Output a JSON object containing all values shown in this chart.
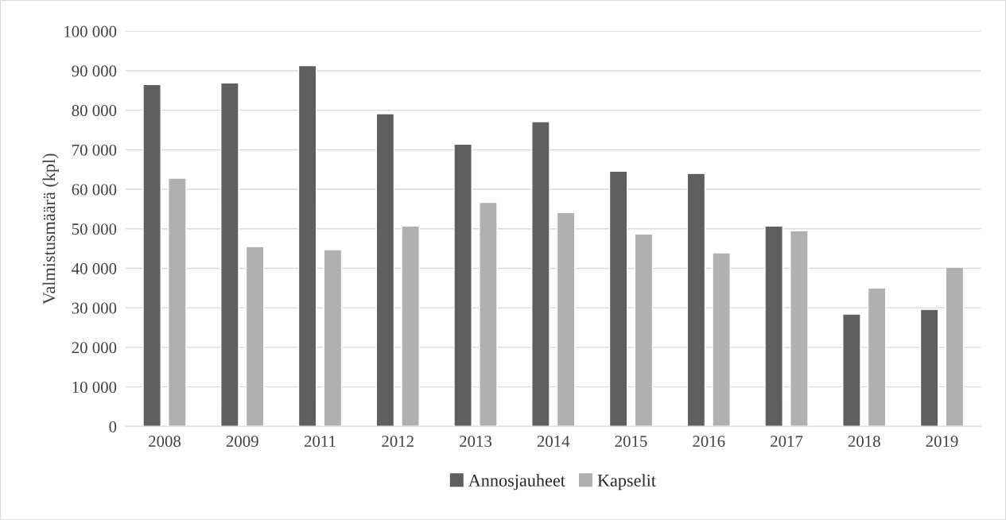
{
  "chart_data": {
    "type": "bar",
    "ylabel": "Valmistusmäärä (kpl)",
    "categories": [
      "2008",
      "2009",
      "2011",
      "2012",
      "2013",
      "2014",
      "2015",
      "2016",
      "2017",
      "2018",
      "2019"
    ],
    "series": [
      {
        "name": "Annosjauheet",
        "color": "#5f5f5f",
        "values": [
          86500,
          86900,
          91300,
          79100,
          71400,
          77100,
          64600,
          64000,
          50700,
          28400,
          29600
        ]
      },
      {
        "name": "Kapselit",
        "color": "#b0b0b0",
        "values": [
          62800,
          45500,
          44700,
          50700,
          56700,
          54100,
          48700,
          43900,
          49500,
          35000,
          40300
        ]
      }
    ],
    "ylim": [
      0,
      100000
    ],
    "yticks": [
      {
        "value": 0,
        "label": "0"
      },
      {
        "value": 10000,
        "label": "10 000"
      },
      {
        "value": 20000,
        "label": "20 000"
      },
      {
        "value": 30000,
        "label": "30 000"
      },
      {
        "value": 40000,
        "label": "40 000"
      },
      {
        "value": 50000,
        "label": "50 000"
      },
      {
        "value": 60000,
        "label": "60 000"
      },
      {
        "value": 70000,
        "label": "70 000"
      },
      {
        "value": 80000,
        "label": "80 000"
      },
      {
        "value": 90000,
        "label": "90 000"
      },
      {
        "value": 100000,
        "label": "100 000"
      }
    ],
    "grid": "y",
    "legend": "bottom"
  }
}
